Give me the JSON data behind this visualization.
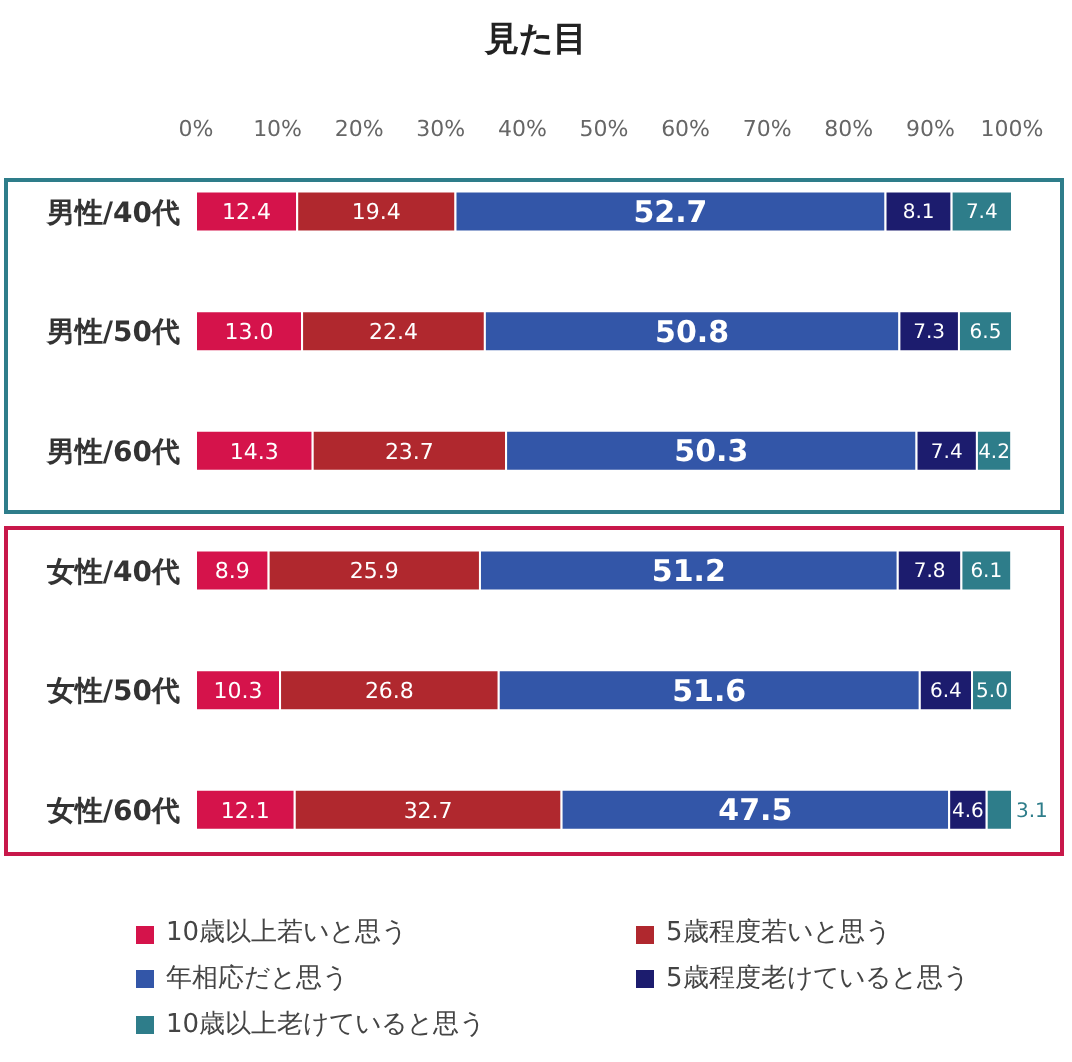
{
  "chart_data": {
    "type": "bar",
    "orientation": "horizontal",
    "stacked": true,
    "title": "見た目",
    "categories": [
      "男性/40代",
      "男性/50代",
      "男性/60代",
      "女性/40代",
      "女性/50代",
      "女性/60代"
    ],
    "series": [
      {
        "name": "10歳以上若いと思う",
        "color": "#d5134b",
        "values": [
          12.4,
          13.0,
          14.3,
          8.9,
          10.3,
          12.1
        ],
        "value_labels": [
          "12.4",
          "13.0",
          "14.3",
          "8.9",
          "10.3",
          "12.1"
        ]
      },
      {
        "name": "5歳程度若いと思う",
        "color": "#b0282e",
        "values": [
          19.4,
          22.4,
          23.7,
          25.9,
          26.8,
          32.7
        ],
        "value_labels": [
          "19.4",
          "22.4",
          "23.7",
          "25.9",
          "26.8",
          "32.7"
        ]
      },
      {
        "name": "年相応だと思う",
        "color": "#3356a8",
        "values": [
          52.7,
          50.8,
          50.3,
          51.2,
          51.6,
          47.5
        ],
        "value_labels": [
          "52.7",
          "50.8",
          "50.3",
          "51.2",
          "51.6",
          "47.5"
        ]
      },
      {
        "name": "5歳程度老けていると思う",
        "color": "#1c1c6e",
        "values": [
          8.1,
          7.3,
          7.4,
          7.8,
          6.4,
          4.6
        ],
        "value_labels": [
          "8.1",
          "7.3",
          "7.4",
          "7.8",
          "6.4",
          "4.6"
        ]
      },
      {
        "name": "10歳以上老けていると思う",
        "color": "#2e7d8a",
        "values": [
          7.4,
          6.5,
          4.2,
          6.1,
          5.0,
          3.1
        ],
        "value_labels": [
          "7.4",
          "6.5",
          "4.2",
          "6.1",
          "5.0",
          "3.1"
        ]
      }
    ],
    "xlim": [
      0,
      100
    ],
    "xticks": [
      {
        "value": 0,
        "label": "0%"
      },
      {
        "value": 10,
        "label": "10%"
      },
      {
        "value": 20,
        "label": "20%"
      },
      {
        "value": 30,
        "label": "30%"
      },
      {
        "value": 40,
        "label": "40%"
      },
      {
        "value": 50,
        "label": "50%"
      },
      {
        "value": 60,
        "label": "60%"
      },
      {
        "value": 70,
        "label": "70%"
      },
      {
        "value": 80,
        "label": "80%"
      },
      {
        "value": 90,
        "label": "90%"
      },
      {
        "value": 100,
        "label": "100%"
      }
    ],
    "grid": false,
    "legend": "bottom"
  }
}
